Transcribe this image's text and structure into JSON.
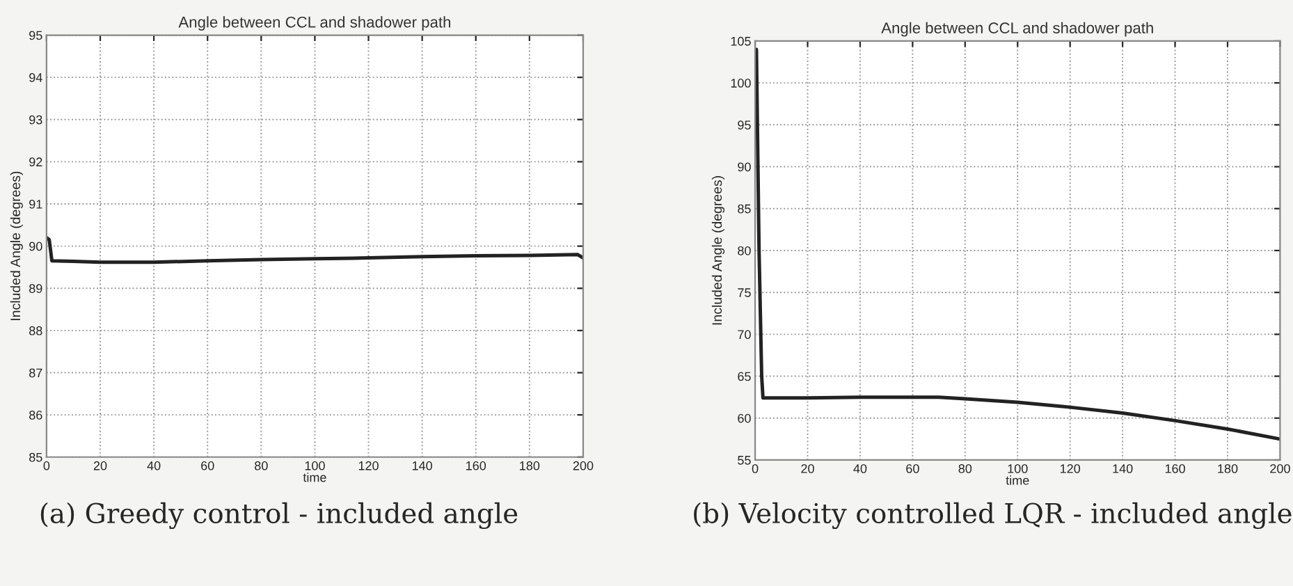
{
  "chart_data": [
    {
      "type": "line",
      "title": "Angle between CCL and shadower path",
      "xlabel": "time",
      "ylabel": "Included Angle (degrees)",
      "x": [
        0,
        1,
        2,
        10,
        20,
        40,
        60,
        80,
        100,
        120,
        140,
        160,
        180,
        198,
        200
      ],
      "series": [
        {
          "color": "#222222",
          "values": [
            90.2,
            90.15,
            89.65,
            89.64,
            89.62,
            89.62,
            89.65,
            89.68,
            89.7,
            89.72,
            89.75,
            89.77,
            89.78,
            89.8,
            89.72
          ]
        }
      ],
      "xlim": [
        0,
        200
      ],
      "xticks": [
        0,
        20,
        40,
        60,
        80,
        100,
        120,
        140,
        160,
        180,
        200
      ],
      "ylim": [
        85,
        95
      ],
      "yticks": [
        85,
        86,
        87,
        88,
        89,
        90,
        91,
        92,
        93,
        94,
        95
      ],
      "grid": true,
      "marker": "none",
      "line_style": "solid",
      "annotations": [
        "(a) Greedy control - included angle"
      ]
    },
    {
      "type": "line",
      "title": "Angle between CCL and shadower path",
      "xlabel": "time",
      "ylabel": "Included Angle (degrees)",
      "x": [
        0.5,
        1.5,
        2.5,
        3,
        20,
        40,
        60,
        70,
        80,
        100,
        120,
        140,
        160,
        180,
        200
      ],
      "series": [
        {
          "color": "#222222",
          "values": [
            104,
            80,
            65,
            62.4,
            62.4,
            62.5,
            62.5,
            62.5,
            62.3,
            61.9,
            61.3,
            60.6,
            59.7,
            58.7,
            57.5
          ]
        }
      ],
      "xlim": [
        0,
        200
      ],
      "xticks": [
        0,
        20,
        40,
        60,
        80,
        100,
        120,
        140,
        160,
        180,
        200
      ],
      "ylim": [
        55,
        105
      ],
      "yticks": [
        55,
        60,
        65,
        70,
        75,
        80,
        85,
        90,
        95,
        100,
        105
      ],
      "grid": true,
      "marker": "none",
      "line_style": "solid",
      "annotations": [
        "(b) Velocity controlled LQR - included angle"
      ]
    }
  ]
}
